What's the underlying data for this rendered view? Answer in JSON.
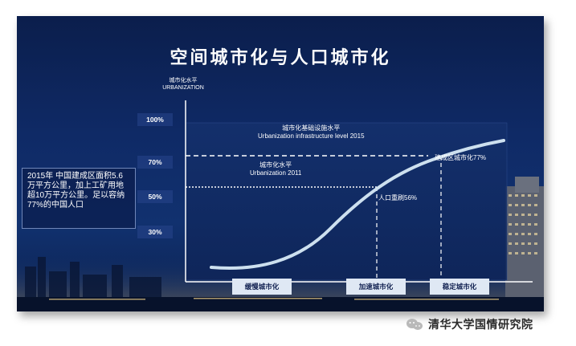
{
  "title": "空间城市化与人口城市化",
  "y_axis": {
    "title_cn": "城市化水平",
    "title_en": "URBANIZATION",
    "ticks": [
      "100%",
      "70%",
      "50%",
      "30%"
    ]
  },
  "note": "2015年  中国建成区面积5.6万平方公里，加上工矿用地超10万平方公里。足以容纳77%的中国人口",
  "annotations": {
    "infra_cn": "城市化基础设施水平",
    "infra_en": "Urbanization infrastructure level 2015",
    "urban_cn": "城市化水平",
    "urban_en": "Urbanization 2011",
    "built_area": "建成区城市化77%",
    "population": "人口重刷56%"
  },
  "stages": [
    "缓慢城市化",
    "加速城市化",
    "稳定城市化"
  ],
  "watermark": "清华大学国情研究院",
  "colors": {
    "curve": "#cde0ef",
    "background": "#0f2a66",
    "stage_fill": "#dfe8f4"
  }
}
